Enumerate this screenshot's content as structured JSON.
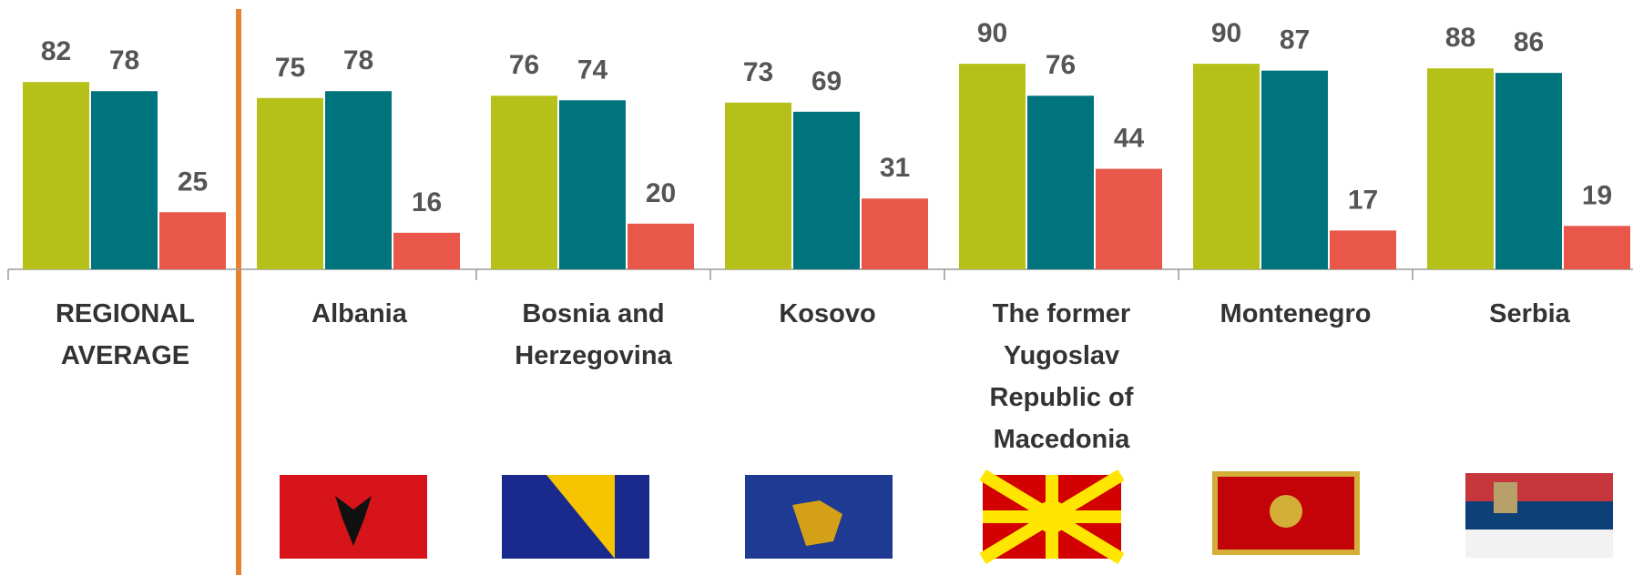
{
  "chart_data": {
    "type": "bar",
    "categories": [
      "REGIONAL AVERAGE",
      "Albania",
      "Bosnia and Herzegovina",
      "Kosovo",
      "The former Yugoslav Republic of Macedonia",
      "Montenegro",
      "Serbia"
    ],
    "series": [
      {
        "color": "#b5c118",
        "values": [
          82,
          75,
          76,
          73,
          90,
          90,
          88
        ]
      },
      {
        "color": "#00747c",
        "values": [
          78,
          78,
          74,
          69,
          76,
          87,
          86
        ]
      },
      {
        "color": "#e8574a",
        "values": [
          25,
          16,
          20,
          31,
          44,
          17,
          19
        ]
      }
    ]
  }
}
